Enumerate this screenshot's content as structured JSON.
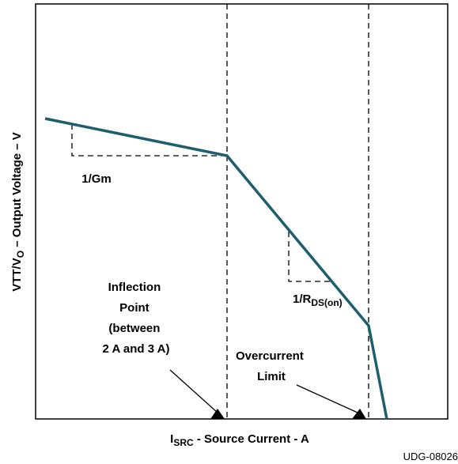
{
  "axes": {
    "y_label": {
      "main": "VTT/V",
      "sub": "O",
      "rest": " – Output Voltage – V"
    },
    "x_label": {
      "main": "I",
      "sub": "SRC",
      "rest": " - Source Current - A"
    }
  },
  "annotations": {
    "slope1": "1/Gm",
    "slope2": {
      "main": "1/R",
      "sub": "DS(on)"
    },
    "inflection": [
      "Inflection",
      "Point",
      "(between",
      "2 A and 3 A)"
    ],
    "overcurrent": [
      "Overcurrent",
      "Limit"
    ]
  },
  "figure_id": "UDG-08026"
}
